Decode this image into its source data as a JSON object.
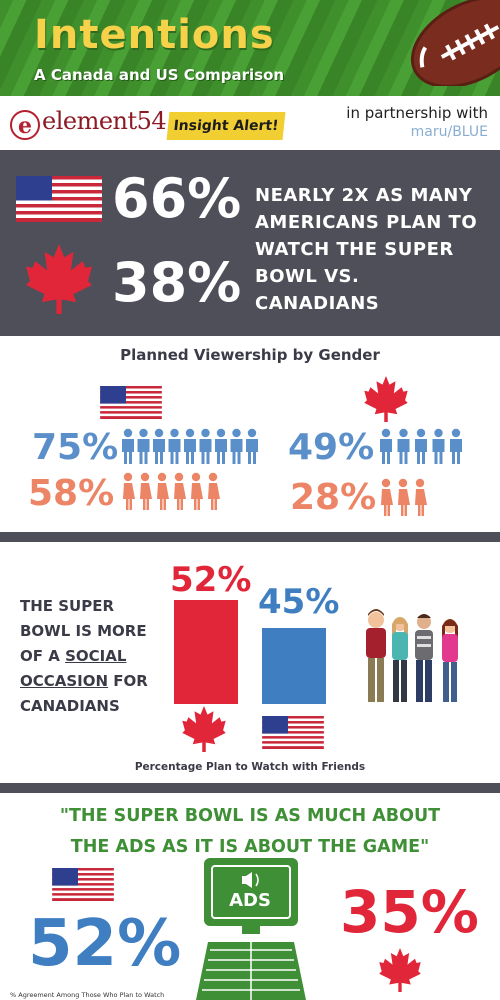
{
  "header": {
    "title": "Intentions",
    "subtitle": "A Canada and US Comparison"
  },
  "logos": {
    "brand": "element54",
    "badge": "e",
    "alert": "Insight Alert!",
    "partner_text": "in partnership with",
    "partner_brand": "maru/BLUE"
  },
  "summary": {
    "us_pct": "66%",
    "ca_pct": "38%",
    "text_lines": [
      "NEARLY 2X AS MANY",
      "AMERICANS PLAN TO",
      "WATCH THE SUPER",
      "BOWL VS. CANADIANS"
    ]
  },
  "gender": {
    "title": "Planned Viewership by Gender",
    "us_male": "75%",
    "us_female": "58%",
    "ca_male": "49%",
    "ca_female": "28%",
    "colors": {
      "male": "#5b8fc9",
      "female": "#ec8466"
    }
  },
  "social": {
    "text_lines": [
      {
        "parts": [
          {
            "t": "THE SUPER",
            "u": false
          }
        ]
      },
      {
        "parts": [
          {
            "t": "BOWL IS MORE",
            "u": false
          }
        ]
      },
      {
        "parts": [
          {
            "t": "OF A ",
            "u": false
          },
          {
            "t": "SOCIAL",
            "u": true
          }
        ]
      },
      {
        "parts": [
          {
            "t": "OCCASION",
            "u": true
          },
          {
            "t": " FOR",
            "u": false
          }
        ]
      },
      {
        "parts": [
          {
            "t": "CANADIANS",
            "u": false
          }
        ]
      }
    ],
    "ca_pct": "52%",
    "us_pct": "45%",
    "caption": "Percentage Plan to Watch with Friends",
    "colors": {
      "canada": "#e02638",
      "usa": "#3f7fc1"
    }
  },
  "ads": {
    "quote_lines": [
      "\"THE SUPER BOWL IS AS MUCH ABOUT",
      "THE ADS AS IT IS ABOUT THE GAME\""
    ],
    "us_pct": "52%",
    "ca_pct": "35%",
    "screen_label": "ADS",
    "footnote": "% Agreement Among Those Who Plan to Watch"
  },
  "icons": {
    "us_flag": "us-flag-icon",
    "ca_flag": "maple-leaf-icon",
    "male": "male-person-icon",
    "female": "female-person-icon",
    "football": "football-icon",
    "tv": "tv-screen-icon"
  }
}
